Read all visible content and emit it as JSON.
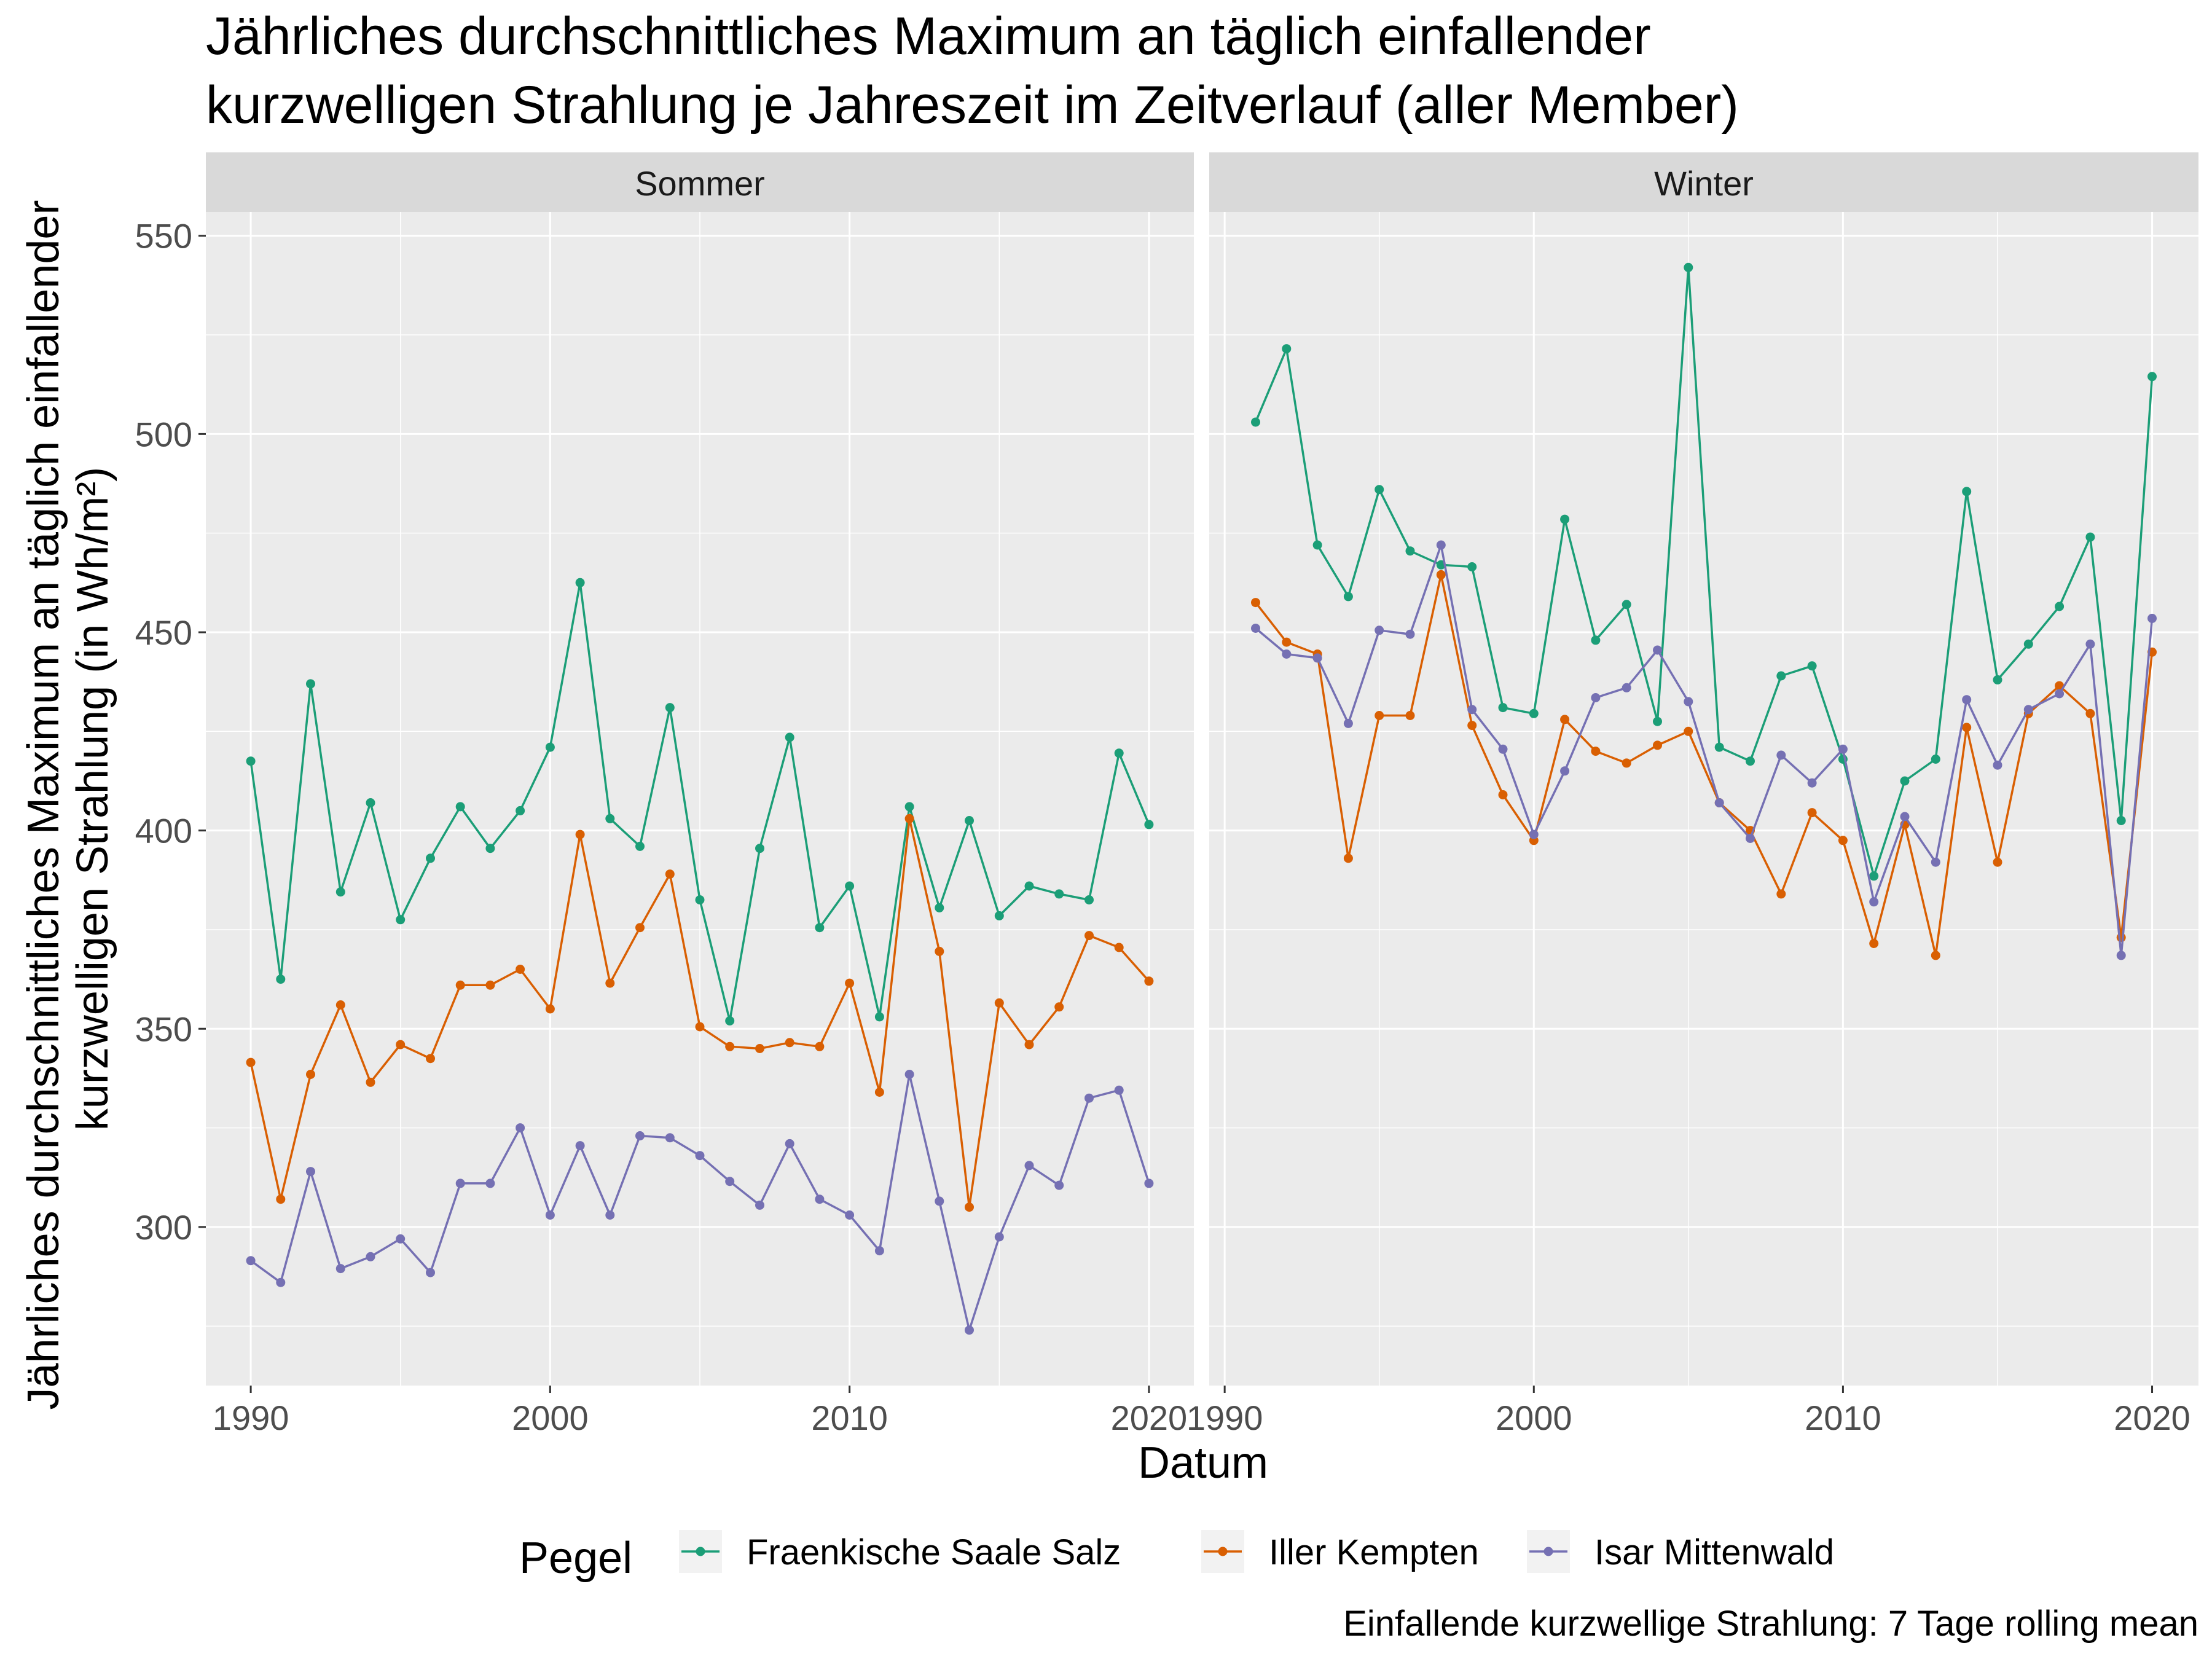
{
  "chart_data": {
    "type": "line",
    "title_lines": [
      "Jährliches durchschnittliches Maximum an täglich einfallender",
      "kurzwelligen Strahlung je Jahreszeit im Zeitverlauf (aller Member)"
    ],
    "ylabel_lines": [
      "Jährliches durchschnittliches Maximum an täglich einfallender",
      "kurzwelligen Strahlung (in Wh/m²)"
    ],
    "xlabel": "Datum",
    "caption": "Einfallende kurzwellige Strahlung: 7 Tage rolling mean",
    "legend": {
      "title": "Pegel",
      "position": "bottom"
    },
    "ylim": [
      260,
      556
    ],
    "yticks": [
      300,
      350,
      400,
      450,
      500,
      550
    ],
    "xticks": [
      1990,
      2000,
      2010,
      2020
    ],
    "grid": true,
    "series_colors": {
      "Fraenkische Saale Salz": "#1b9e77",
      "Iller Kempten": "#d95f02",
      "Isar Mittenwald": "#7570b3"
    },
    "panels": [
      {
        "label": "Sommer",
        "xlim": [
          1988.5,
          2021.5
        ],
        "x": [
          1990,
          1991,
          1992,
          1993,
          1994,
          1995,
          1996,
          1997,
          1998,
          1999,
          2000,
          2001,
          2002,
          2003,
          2004,
          2005,
          2006,
          2007,
          2008,
          2009,
          2010,
          2011,
          2012,
          2013,
          2014,
          2015,
          2016,
          2017,
          2018,
          2019,
          2020
        ],
        "series": [
          {
            "name": "Fraenkische Saale Salz",
            "values": [
              417.5,
              362.5,
              437,
              384.5,
              407,
              377.5,
              393,
              406,
              395.5,
              405,
              421,
              462.5,
              403,
              396,
              431,
              382.5,
              352,
              395.5,
              423.5,
              375.5,
              386,
              353,
              406,
              380.5,
              402.5,
              378.5,
              386,
              384,
              382.5,
              419.5,
              401.5
            ]
          },
          {
            "name": "Iller Kempten",
            "values": [
              341.5,
              307,
              338.5,
              356,
              336.5,
              346,
              342.5,
              361,
              361,
              365,
              355,
              399,
              361.5,
              375.5,
              389,
              350.5,
              345.5,
              345,
              346.5,
              345.5,
              361.5,
              334,
              403,
              369.5,
              305,
              356.5,
              346,
              355.5,
              373.5,
              370.5,
              362
            ]
          },
          {
            "name": "Isar Mittenwald",
            "values": [
              291.5,
              286,
              314,
              289.5,
              292.5,
              297,
              288.5,
              311,
              311,
              325,
              303,
              320.5,
              303,
              323,
              322.5,
              318,
              311.5,
              305.5,
              321,
              307,
              303,
              294,
              338.5,
              306.5,
              274,
              297.5,
              315.5,
              310.5,
              332.5,
              334.5,
              311
            ]
          }
        ]
      },
      {
        "label": "Winter",
        "xlim": [
          1989.5,
          2021.5
        ],
        "x": [
          1991,
          1992,
          1993,
          1994,
          1995,
          1996,
          1997,
          1998,
          1999,
          2000,
          2001,
          2002,
          2003,
          2004,
          2005,
          2006,
          2007,
          2008,
          2009,
          2010,
          2011,
          2012,
          2013,
          2014,
          2015,
          2016,
          2017,
          2018,
          2019,
          2020
        ],
        "series": [
          {
            "name": "Fraenkische Saale Salz",
            "values": [
              503,
              521.5,
              472,
              459,
              486,
              470.5,
              467,
              466.5,
              431,
              429.5,
              478.5,
              448,
              457,
              427.5,
              542,
              421,
              417.5,
              439,
              441.5,
              418,
              388.5,
              412.5,
              418,
              485.5,
              438,
              447,
              456.5,
              474,
              402.5,
              514.5
            ]
          },
          {
            "name": "Iller Kempten",
            "values": [
              457.5,
              447.5,
              444.5,
              393,
              429,
              429,
              464.5,
              426.5,
              409,
              397.5,
              428,
              420,
              417,
              421.5,
              425,
              407,
              400,
              384,
              404.5,
              397.5,
              371.5,
              401.5,
              368.5,
              426,
              392,
              429.5,
              436.5,
              429.5,
              373,
              445
            ]
          },
          {
            "name": "Isar Mittenwald",
            "values": [
              451,
              444.5,
              443.5,
              427,
              450.5,
              449.5,
              472,
              430.5,
              420.5,
              399,
              415,
              433.5,
              436,
              445.5,
              432.5,
              407,
              398,
              419,
              412,
              420.5,
              382,
              403.5,
              392,
              433,
              416.5,
              430.5,
              434.5,
              447,
              368.5,
              453.5
            ]
          }
        ]
      }
    ]
  }
}
